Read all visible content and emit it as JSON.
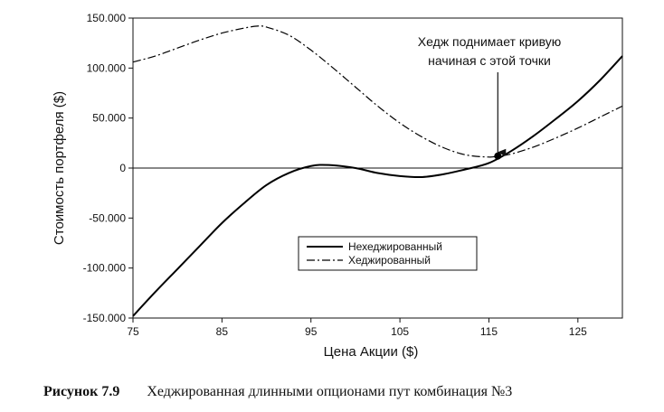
{
  "chart_data": {
    "type": "line",
    "xlabel": "Цена Акции ($)",
    "ylabel": "Стоимость портфеля ($)",
    "xlim": [
      75,
      130
    ],
    "ylim": [
      -150000,
      150000
    ],
    "x_ticks": [
      75,
      85,
      95,
      105,
      115,
      125
    ],
    "x_tick_labels": [
      "75",
      "85",
      "95",
      "105",
      "115",
      "125"
    ],
    "y_ticks": [
      150000,
      100000,
      50000,
      0,
      -50000,
      -100000,
      -150000
    ],
    "y_tick_labels": [
      "150.000",
      "100.000",
      "50.000",
      "0",
      "-50.000",
      "-100.000",
      "-150.000"
    ],
    "legend_position": "lower-center",
    "series": [
      {
        "name": "Нехеджированный",
        "style": "solid",
        "x": [
          75,
          77.5,
          80,
          82.5,
          85,
          87.5,
          90,
          92.5,
          95,
          97,
          100,
          102.5,
          105,
          107.5,
          110,
          112.5,
          115,
          117.5,
          120,
          122.5,
          125,
          127.5,
          130
        ],
        "y": [
          -148000,
          -124000,
          -101000,
          -78000,
          -55000,
          -35000,
          -17000,
          -5000,
          2000,
          3000,
          0,
          -5000,
          -8000,
          -9000,
          -6000,
          -1000,
          5000,
          17000,
          32000,
          49000,
          67000,
          88000,
          112000
        ]
      },
      {
        "name": "Хеджированный",
        "style": "dashdot",
        "x": [
          75,
          77.5,
          80,
          82.5,
          85,
          87.5,
          89,
          90,
          92.5,
          95,
          97.5,
          100,
          102.5,
          105,
          107.5,
          110,
          112.5,
          115,
          116,
          117.5,
          120,
          122.5,
          125,
          127.5,
          130
        ],
        "y": [
          106000,
          112000,
          120000,
          128000,
          135000,
          140000,
          142000,
          141000,
          133000,
          118000,
          100000,
          81000,
          62000,
          45000,
          31000,
          20000,
          13000,
          11000,
          12000,
          14000,
          21000,
          30000,
          40000,
          51000,
          62000
        ]
      }
    ],
    "annotation": {
      "lines": [
        "Хедж поднимает кривую",
        "начиная с этой точки"
      ],
      "point": {
        "x": 116,
        "y": 12000
      }
    }
  },
  "caption": {
    "label": "Рисунок 7.9",
    "text": "Хеджированная длинными опционами пут комбинация №3"
  }
}
